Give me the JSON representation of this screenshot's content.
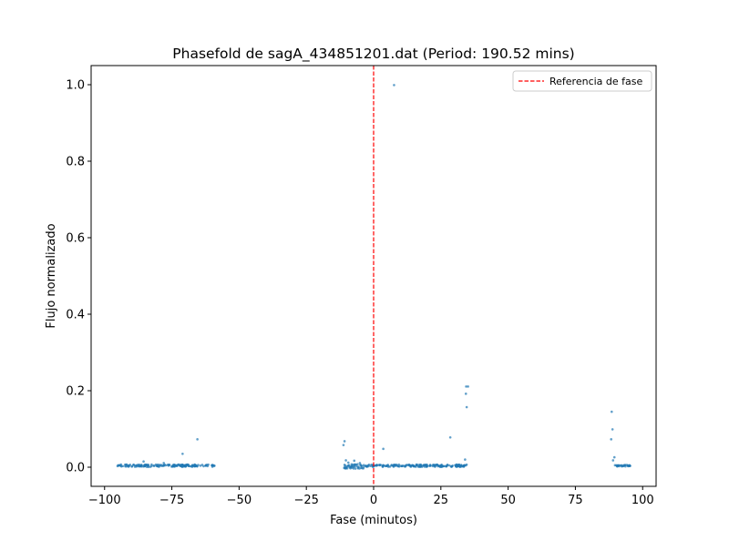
{
  "chart_data": {
    "type": "scatter",
    "title": "Phasefold de sagA_434851201.dat (Period: 190.52 mins)",
    "xlabel": "Fase (minutos)",
    "ylabel": "Flujo normalizado",
    "xlim": [
      -105,
      105
    ],
    "ylim": [
      -0.05,
      1.05
    ],
    "xticks": [
      -100,
      -75,
      -50,
      -25,
      0,
      25,
      50,
      75,
      100
    ],
    "yticks": [
      0.0,
      0.2,
      0.4,
      0.6,
      0.8,
      1.0
    ],
    "xtick_labels": [
      "−100",
      "−75",
      "−50",
      "−25",
      "0",
      "25",
      "50",
      "75",
      "100"
    ],
    "ytick_labels": [
      "0.0",
      "0.2",
      "0.4",
      "0.6",
      "0.8",
      "1.0"
    ],
    "grid": false,
    "legend_position": "upper-right",
    "reference_line": {
      "x": 0,
      "label": "Referencia de fase",
      "color": "#ff0000",
      "style": "dashed"
    },
    "point_color": "#1f77b4",
    "series": [
      {
        "clusters": [
          {
            "x_range": [
              -95.5,
              -59
            ],
            "y": 0.004,
            "spread": 0.003,
            "count": 170
          },
          {
            "x_range": [
              -11,
              -3
            ],
            "y": 0.002,
            "spread": 0.006,
            "count": 45
          },
          {
            "x_range": [
              -3,
              35
            ],
            "y": 0.004,
            "spread": 0.003,
            "count": 190
          },
          {
            "x_range": [
              89.5,
              95.5
            ],
            "y": 0.004,
            "spread": 0.002,
            "count": 30
          }
        ],
        "points": [
          [
            -71,
            0.035
          ],
          [
            -65.5,
            0.073
          ],
          [
            -85.5,
            0.015
          ],
          [
            -78,
            0.011
          ],
          [
            -11.2,
            0.058
          ],
          [
            -10.8,
            0.068
          ],
          [
            -10.3,
            0.018
          ],
          [
            -9.4,
            0.012
          ],
          [
            -7.2,
            0.017
          ],
          [
            -5.1,
            0.011
          ],
          [
            3.6,
            0.048
          ],
          [
            7.6,
            0.999
          ],
          [
            28.5,
            0.078
          ],
          [
            34.3,
            0.192
          ],
          [
            34.6,
            0.157
          ],
          [
            34.4,
            0.211
          ],
          [
            35.1,
            0.211
          ],
          [
            34.0,
            0.02
          ],
          [
            88.5,
            0.145
          ],
          [
            88.3,
            0.073
          ],
          [
            88.8,
            0.099
          ],
          [
            89.5,
            0.026
          ],
          [
            89.0,
            0.018
          ]
        ]
      }
    ]
  }
}
